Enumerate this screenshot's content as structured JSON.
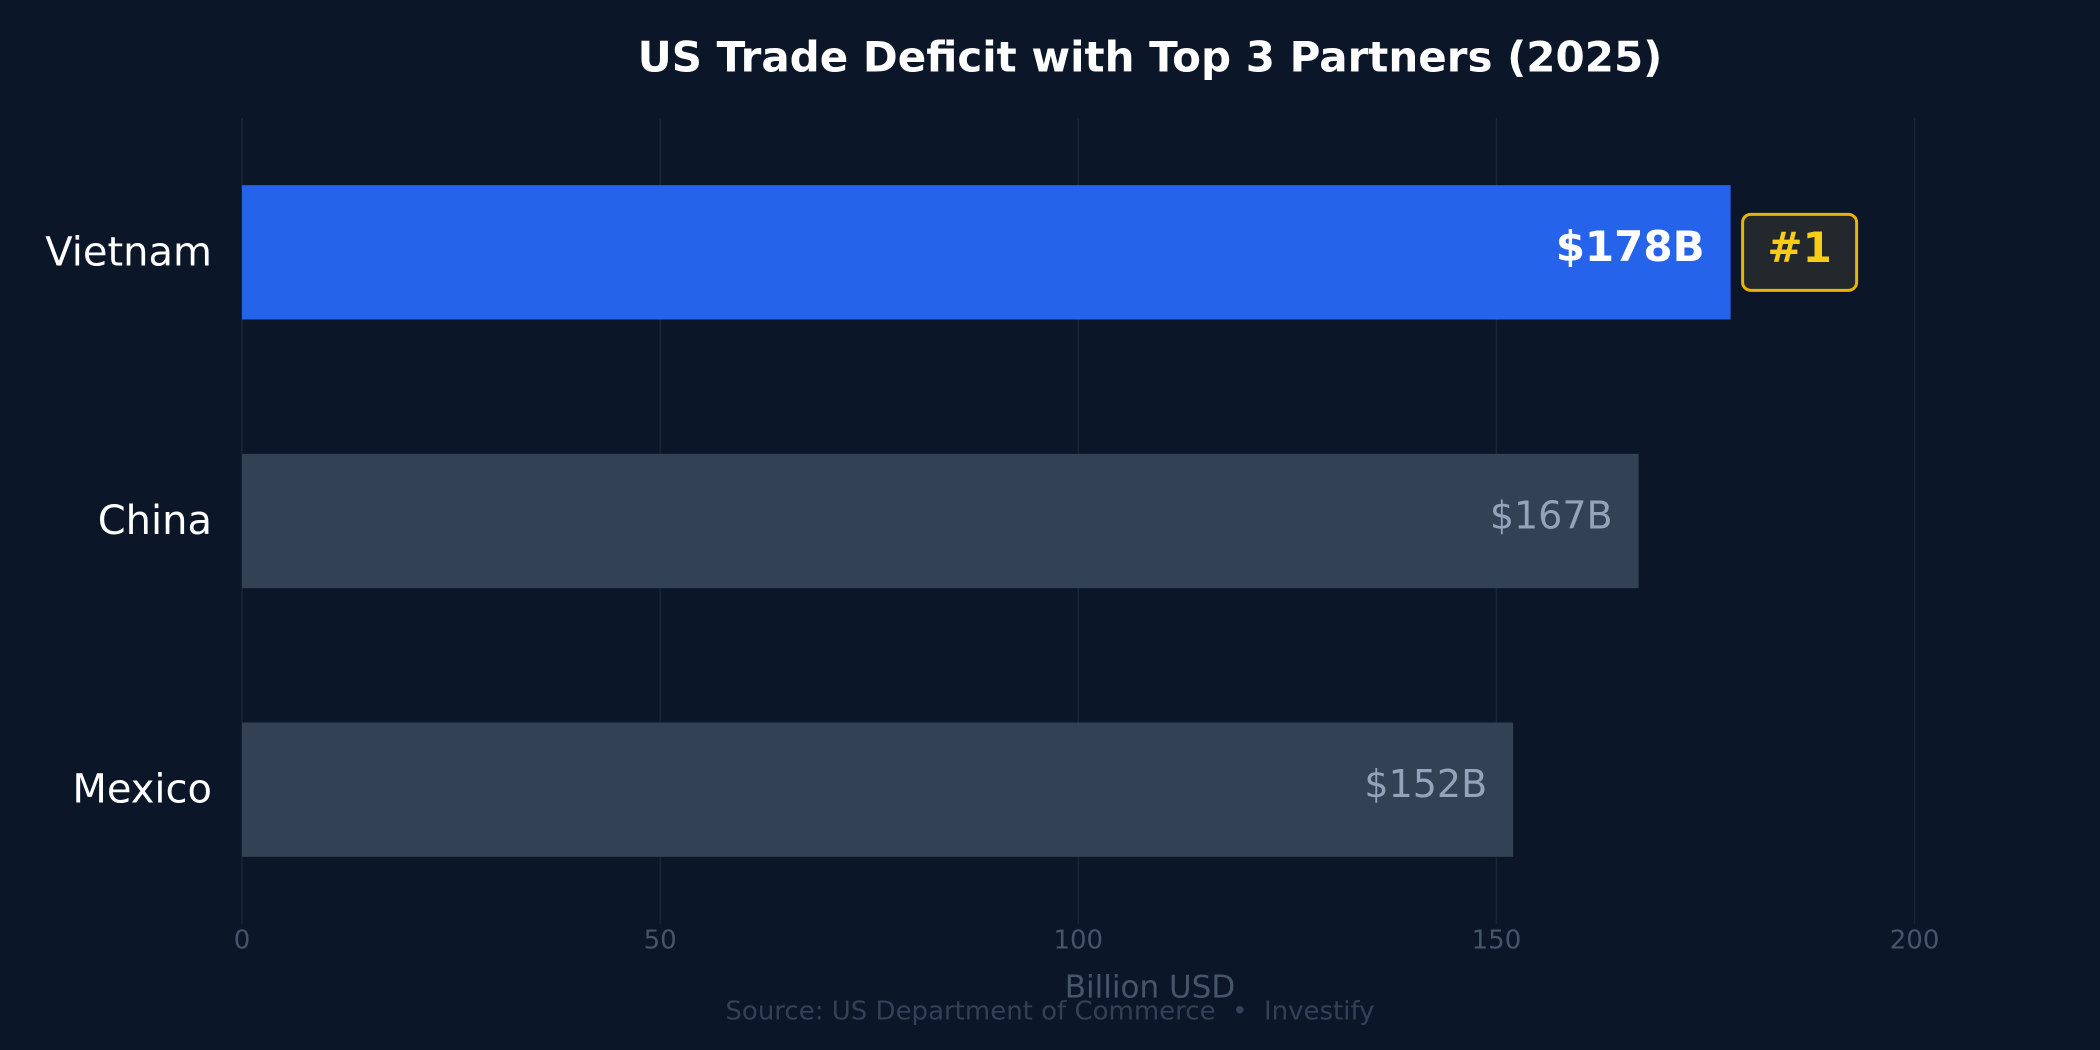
{
  "chart_data": {
    "type": "bar",
    "orientation": "horizontal",
    "title": "US Trade Deficit with Top 3 Partners (2025)",
    "categories": [
      "Vietnam",
      "China",
      "Mexico"
    ],
    "values": [
      178,
      167,
      152
    ],
    "value_labels": [
      "$178B",
      "$167B",
      "$152B"
    ],
    "colors": [
      "#2563eb",
      "#334155",
      "#334155"
    ],
    "annotation": "#1",
    "xlabel": "Billion USD",
    "source": "Source: US Department of Commerce  •  Investify",
    "xlim": [
      0,
      220
    ],
    "xticks": [
      0,
      50,
      100,
      150,
      200
    ],
    "grid": true
  }
}
